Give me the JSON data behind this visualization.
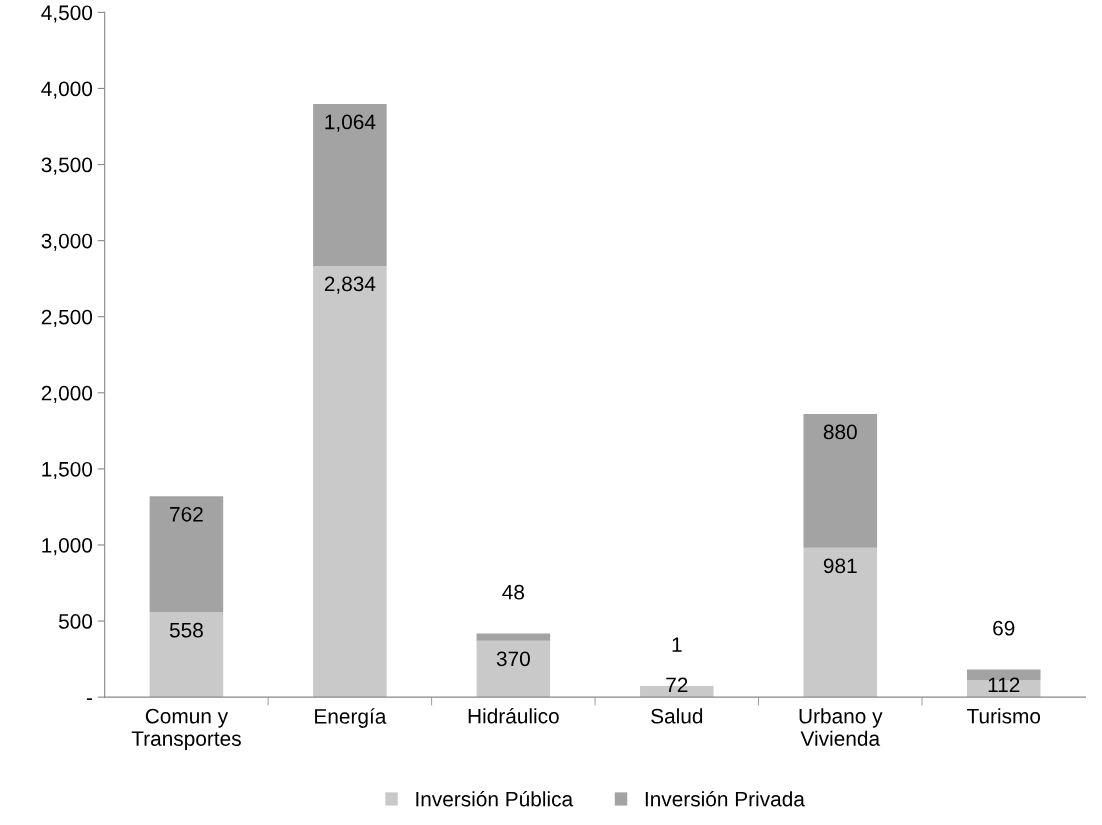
{
  "chart_data": {
    "type": "bar",
    "stacked": true,
    "categories": [
      "Comun y\nTransportes",
      "Energía",
      "Hidráulico",
      "Salud",
      "Urbano y\nVivienda",
      "Turismo"
    ],
    "series": [
      {
        "name": "Inversión Pública",
        "color": "#c9c9c9",
        "values": [
          558,
          2834,
          370,
          72,
          981,
          112
        ],
        "value_labels": [
          "558",
          "2,834",
          "370",
          "72",
          "981",
          "112"
        ]
      },
      {
        "name": "Inversión Privada",
        "color": "#a3a3a3",
        "values": [
          762,
          1064,
          48,
          1,
          880,
          69
        ],
        "value_labels": [
          "762",
          "1,064",
          "48",
          "1",
          "880",
          "69"
        ]
      }
    ],
    "ylim": [
      0,
      4500
    ],
    "yticks": [
      {
        "value": 0,
        "label": "-"
      },
      {
        "value": 500,
        "label": "500"
      },
      {
        "value": 1000,
        "label": "1,000"
      },
      {
        "value": 1500,
        "label": "1,500"
      },
      {
        "value": 2000,
        "label": "2,000"
      },
      {
        "value": 2500,
        "label": "2,500"
      },
      {
        "value": 3000,
        "label": "3,000"
      },
      {
        "value": 3500,
        "label": "3,500"
      },
      {
        "value": 4000,
        "label": "4,000"
      },
      {
        "value": 4500,
        "label": "4,500"
      }
    ],
    "grid": false,
    "legend": "bottom"
  }
}
